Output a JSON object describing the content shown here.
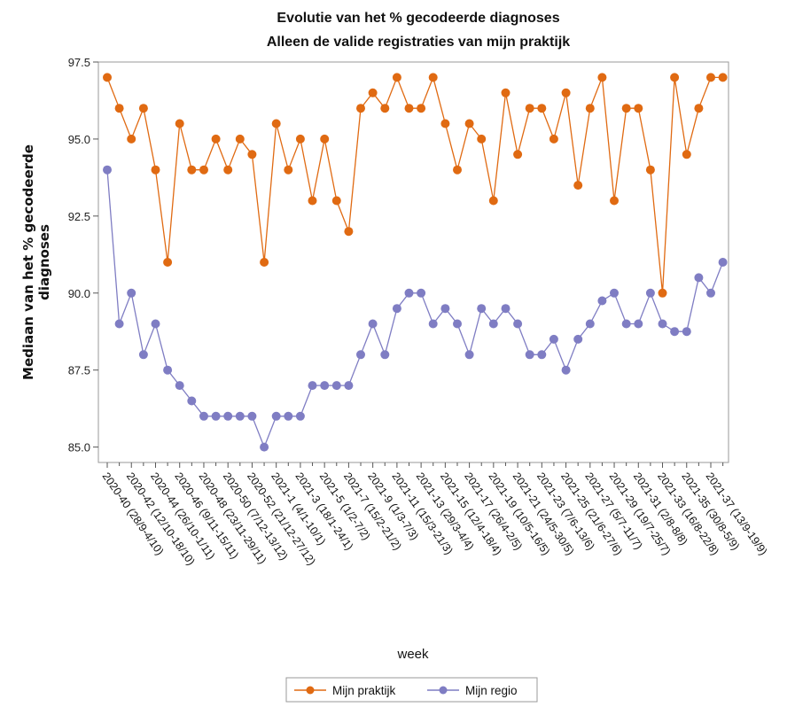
{
  "chart_data": {
    "type": "line",
    "title": "Evolutie van het % gecodeerde diagnoses",
    "subtitle": "Alleen de valide registraties van mijn praktijk",
    "xlabel": "week",
    "ylabel_lines": [
      "Mediaan van het % gecodeerde",
      "diagnoses"
    ],
    "ylim": [
      84.5,
      97.5
    ],
    "yticks": [
      85.0,
      87.5,
      90.0,
      92.5,
      95.0,
      97.5
    ],
    "ytick_labels": [
      "85.0",
      "87.5",
      "90.0",
      "92.5",
      "95.0",
      "97.5"
    ],
    "grid": false,
    "legend_position": "bottom",
    "x_tick_labels": [
      "2020-40 (28/9-4/10)",
      "2020-42 (12/10-18/10)",
      "2020-44 (26/10-1/11)",
      "2020-46 (9/11-15/11)",
      "2020-48 (23/11-29/11)",
      "2020-50 (7/12-13/12)",
      "2020-52 (21/12-27/12)",
      "2021-1 (4/1-10/1)",
      "2021-3 (18/1-24/1)",
      "2021-5 (1/2-7/2)",
      "2021-7 (15/2-21/2)",
      "2021-9 (1/3-7/3)",
      "2021-11 (15/3-21/3)",
      "2021-13 (29/3-4/4)",
      "2021-15 (12/4-18/4)",
      "2021-17 (26/4-2/5)",
      "2021-19 (10/5-16/5)",
      "2021-21 (24/5-30/5)",
      "2021-23 (7/6-13/6)",
      "2021-25 (21/6-27/6)",
      "2021-27 (5/7-11/7)",
      "2021-29 (19/7-25/7)",
      "2021-31 (2/8-8/8)",
      "2021-33 (16/8-22/8)",
      "2021-35 (30/8-5/9)",
      "2021-37 (13/9-19/9)"
    ],
    "x_tick_every": 2,
    "series": [
      {
        "name": "Mijn praktijk",
        "color": "#E06A12",
        "values": [
          97,
          96,
          95,
          96,
          94,
          91,
          95.5,
          94,
          94,
          95,
          94,
          95,
          94.5,
          91,
          95.5,
          94,
          95,
          93,
          95,
          93,
          92,
          96,
          96.5,
          96,
          97,
          96,
          96,
          97,
          95.5,
          94,
          95.5,
          95,
          93,
          96.5,
          94.5,
          96,
          96,
          95,
          96.5,
          93.5,
          96,
          97,
          93,
          96,
          96,
          94,
          90,
          97,
          94.5,
          96,
          97,
          97
        ]
      },
      {
        "name": "Mijn regio",
        "color": "#7F7DC3",
        "values": [
          94,
          89,
          90,
          88,
          89,
          87.5,
          87,
          86.5,
          86,
          86,
          86,
          86,
          86,
          85,
          86,
          86,
          86,
          87,
          87,
          87,
          87,
          88,
          89,
          88,
          89.5,
          90,
          90,
          89,
          89.5,
          89,
          88,
          89.5,
          89,
          89.5,
          89,
          88,
          88,
          88.5,
          87.5,
          88.5,
          89,
          89.75,
          90,
          89,
          89,
          90,
          89,
          88.75,
          88.75,
          90.5,
          90,
          91
        ]
      }
    ]
  }
}
